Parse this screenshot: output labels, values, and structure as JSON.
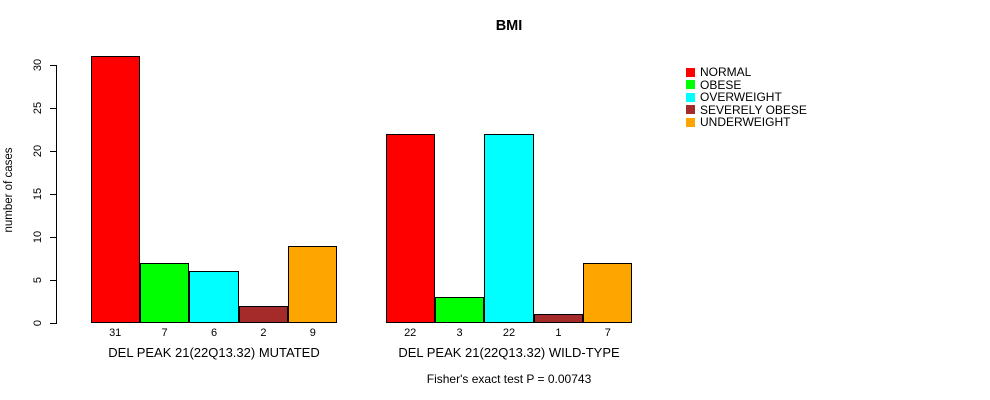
{
  "chart_data": {
    "type": "bar",
    "title": "BMI",
    "ylabel": "number of cases",
    "xlabel": "",
    "ylim": [
      0,
      31
    ],
    "yticks": [
      0,
      5,
      10,
      15,
      20,
      25,
      30
    ],
    "grid": false,
    "legend_position": "right-outside",
    "categories": [
      "NORMAL",
      "OBESE",
      "OVERWEIGHT",
      "SEVERELY OBESE",
      "UNDERWEIGHT"
    ],
    "colors": [
      "#FF0000",
      "#00FF00",
      "#00FFFF",
      "#A52A2A",
      "#FFA500"
    ],
    "groups": [
      {
        "label": "DEL PEAK 21(22Q13.32) MUTATED",
        "values": [
          31,
          7,
          6,
          2,
          9
        ]
      },
      {
        "label": "DEL PEAK 21(22Q13.32) WILD-TYPE",
        "values": [
          22,
          3,
          22,
          1,
          7
        ]
      }
    ],
    "bar_value_labels": true,
    "footnote": "Fisher's exact test P = 0.00743"
  }
}
